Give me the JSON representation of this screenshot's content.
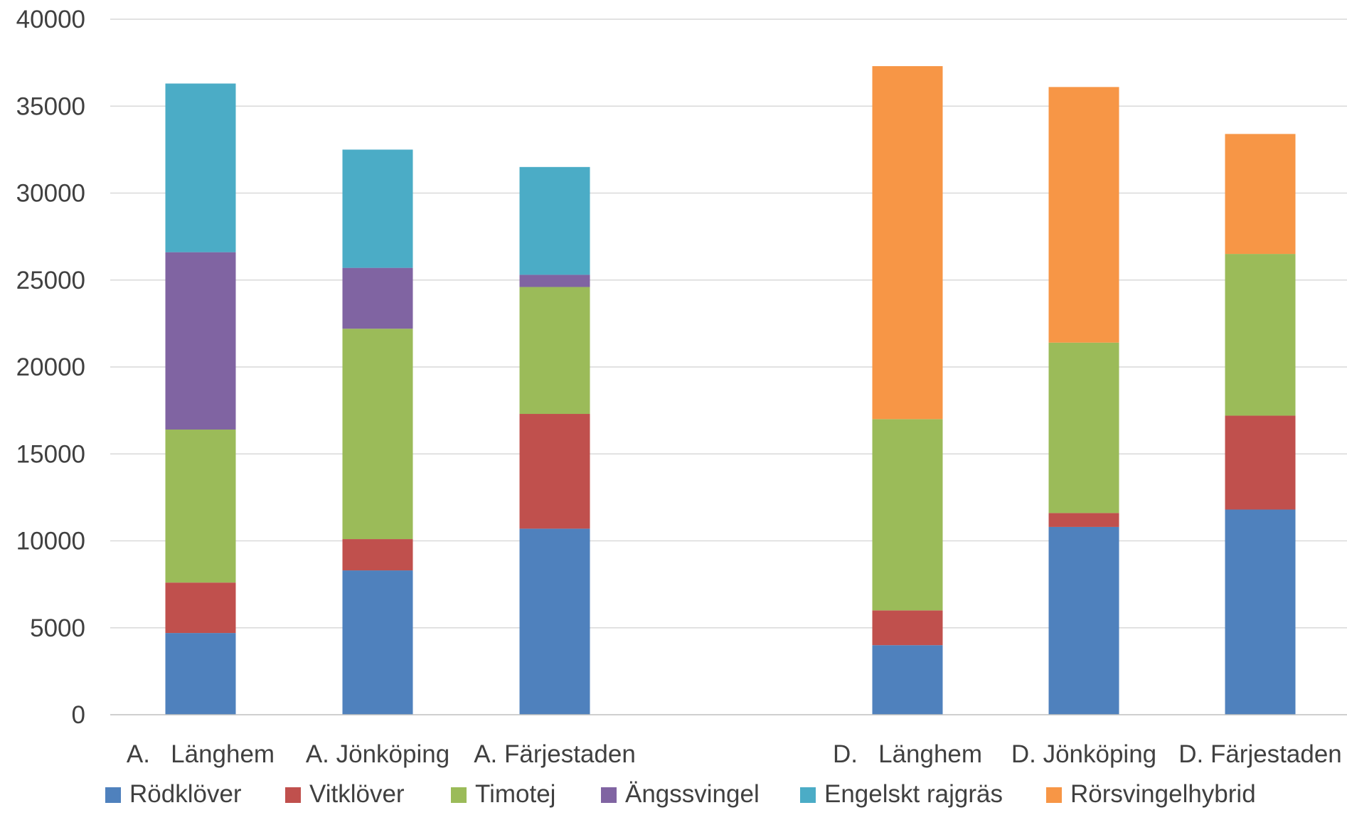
{
  "chart_data": {
    "type": "bar",
    "stacked": true,
    "ylim": [
      0,
      40000
    ],
    "yticks": [
      0,
      5000,
      10000,
      15000,
      20000,
      25000,
      30000,
      35000,
      40000
    ],
    "grid": true,
    "legend_position": "bottom",
    "groups": [
      {
        "categories": [
          "A.   Länghem",
          "A. Jönköping",
          "A. Färjestaden"
        ]
      },
      {
        "categories": [
          "D.   Länghem",
          "D. Jönköping",
          "D. Färjestaden"
        ]
      }
    ],
    "categories": [
      "A.   Länghem",
      "A. Jönköping",
      "A. Färjestaden",
      "D.   Länghem",
      "D. Jönköping",
      "D. Färjestaden"
    ],
    "series": [
      {
        "name": "Rödklöver",
        "color": "#4f81bd",
        "values": [
          4700,
          8300,
          10700,
          4000,
          10800,
          11800
        ]
      },
      {
        "name": "Vitklöver",
        "color": "#c0504d",
        "values": [
          2900,
          1800,
          6600,
          2000,
          800,
          5400
        ]
      },
      {
        "name": "Timotej",
        "color": "#9bbb59",
        "values": [
          8800,
          12100,
          7300,
          11000,
          9800,
          9300
        ]
      },
      {
        "name": "Ängssvingel",
        "color": "#8064a2",
        "values": [
          10200,
          3500,
          700,
          0,
          0,
          0
        ]
      },
      {
        "name": "Engelskt rajgräs",
        "color": "#4bacc6",
        "values": [
          9700,
          6800,
          6200,
          0,
          0,
          0
        ]
      },
      {
        "name": "Rörsvingelhybrid",
        "color": "#f79646",
        "values": [
          0,
          0,
          0,
          20300,
          14700,
          6900
        ]
      }
    ]
  }
}
